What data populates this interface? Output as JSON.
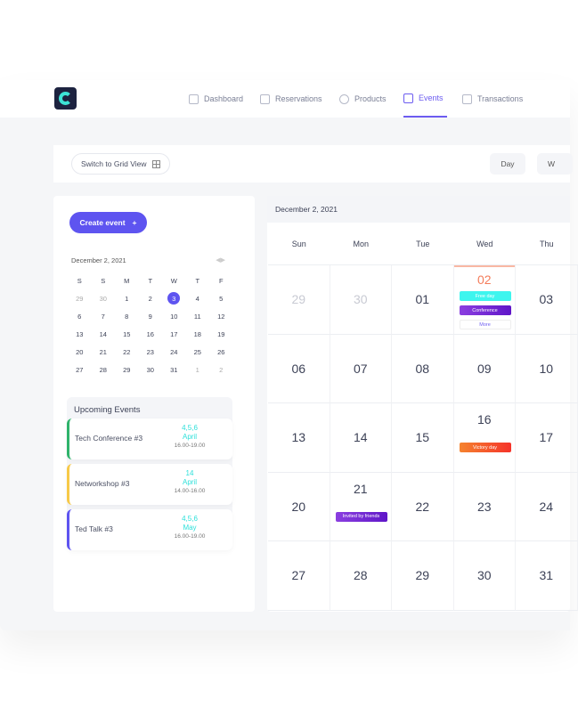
{
  "nav": {
    "items": [
      {
        "label": "Dashboard",
        "icon": "home-icon"
      },
      {
        "label": "Reservations",
        "icon": "reservations-icon"
      },
      {
        "label": "Products",
        "icon": "box-icon"
      },
      {
        "label": "Events",
        "icon": "calendar-check-icon",
        "active": true
      },
      {
        "label": "Transactions",
        "icon": "receipt-icon"
      }
    ]
  },
  "toolbar": {
    "grid_view": "Switch to Grid View",
    "day": "Day",
    "week": "W"
  },
  "left": {
    "create_event": "Create event",
    "plus": "+",
    "mini_calendar": {
      "title": "December 2, 2021",
      "weekdays": [
        "S",
        "S",
        "M",
        "T",
        "W",
        "T",
        "F"
      ],
      "days": [
        "29",
        "30",
        "1",
        "2",
        "3",
        "4",
        "5",
        "6",
        "7",
        "8",
        "9",
        "10",
        "11",
        "12",
        "13",
        "14",
        "15",
        "16",
        "17",
        "18",
        "19",
        "20",
        "21",
        "22",
        "23",
        "24",
        "25",
        "26",
        "27",
        "28",
        "29",
        "30",
        "31",
        "1",
        "2"
      ],
      "selected": "3"
    },
    "upcoming_title": "Upcoming Events",
    "events": [
      {
        "name": "Tech Conference #3",
        "days": "4,5,6",
        "month": "April",
        "time": "16.00-19.00",
        "color": "#2fb36b"
      },
      {
        "name": "Networkshop #3",
        "days": "14",
        "month": "April",
        "time": "14.00-16.00",
        "color": "#f7c948"
      },
      {
        "name": "Ted Talk #3",
        "days": "4,5,6",
        "month": "May",
        "time": "16.00-19.00",
        "color": "#5e54f0"
      }
    ]
  },
  "calendar": {
    "header": "December 2, 2021",
    "weekdays": [
      "Sun",
      "Mon",
      "Tue",
      "Wed",
      "Thu"
    ],
    "weeks": [
      [
        "29",
        "30",
        "01",
        "02",
        "03"
      ],
      [
        "06",
        "07",
        "08",
        "09",
        "10"
      ],
      [
        "13",
        "14",
        "15",
        "16",
        "17"
      ],
      [
        "20",
        "21",
        "22",
        "23",
        "24"
      ],
      [
        "27",
        "28",
        "29",
        "30",
        "31"
      ]
    ],
    "tags": {
      "free_day": "Free day",
      "conference": "Conference",
      "more": "More",
      "victory_day": "Victory day",
      "invited": "Invited by friends"
    }
  },
  "colors": {
    "accent": "#5e54f0",
    "today": "#f47c5a"
  }
}
